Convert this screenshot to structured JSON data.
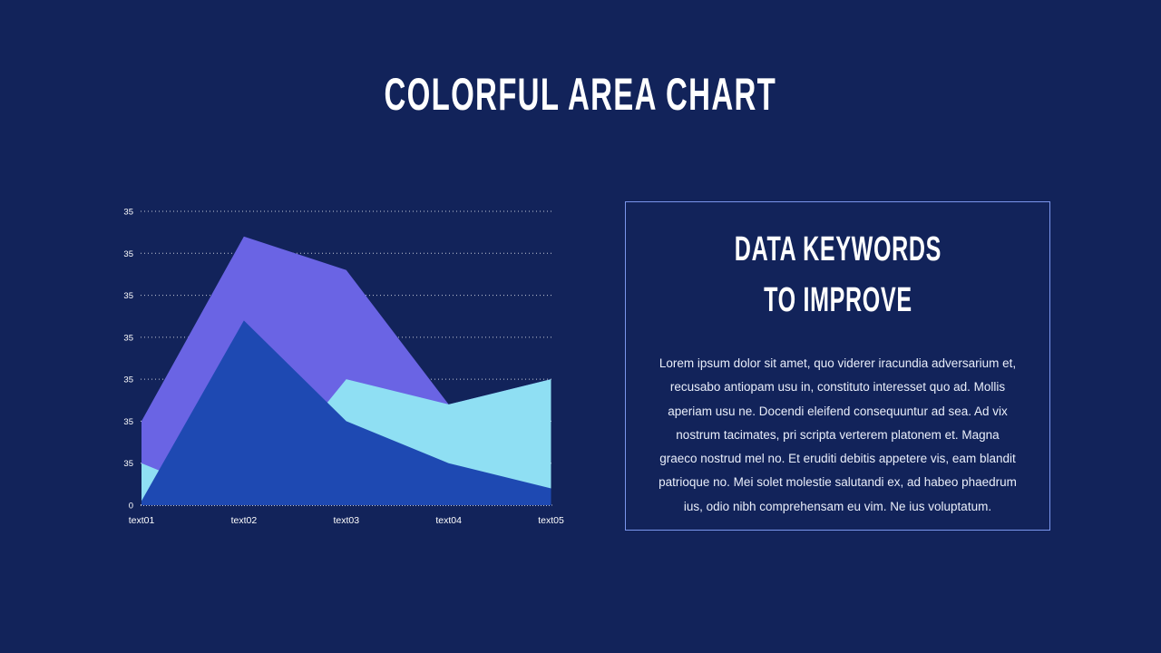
{
  "slide": {
    "title": "COLORFUL AREA CHART"
  },
  "panel": {
    "heading_lines": [
      "DATA KEYWORDS",
      "TO IMPROVE"
    ],
    "body_lines": [
      "Lorem ipsum dolor sit amet, quo viderer iracundia adversarium et,",
      "recusabo antiopam usu in, constituto interesset quo ad. Mollis",
      "aperiam usu ne. Docendi eleifend consequuntur ad sea. Ad vix",
      "nostrum tacimates, pri scripta verterem platonem et. Magna",
      "graeco nostrud mel no. Et eruditi debitis appetere vis, eam blandit",
      "patrioque no. Mei solet molestie salutandi ex, ad habeo phaedrum",
      "ius, odio nibh comprehensam eu vim. Ne ius voluptatum."
    ]
  },
  "chart_data": {
    "type": "area",
    "title": "",
    "xlabel": "",
    "ylabel": "",
    "categories": [
      "text01",
      "text02",
      "text03",
      "text04",
      "text05"
    ],
    "series": [
      {
        "name": "purple-area",
        "color": "#6A64E4",
        "values": [
          10,
          32,
          28,
          12,
          15
        ]
      },
      {
        "name": "cyan-area",
        "color": "#8FDFF3",
        "values": [
          5,
          0,
          15,
          12,
          15
        ]
      },
      {
        "name": "blue-area",
        "color": "#1E49B2",
        "values": [
          0.5,
          22,
          10,
          5,
          2
        ]
      }
    ],
    "ylim": [
      0,
      35
    ],
    "ytick_labels_top_to_bottom": [
      "35",
      "35",
      "35",
      "35",
      "35",
      "35",
      "35",
      "0"
    ],
    "grid": "dotted horizontal gridlines, bottom axis dotted",
    "legend": "none",
    "overlap_mode": "overlaid (not stacked), blue drawn in front, cyan middle, purple behind"
  },
  "colors": {
    "background": "#12235A",
    "panel_border": "#7B96EC",
    "title_text": "#FFFFFF",
    "body_text": "#E9EEFA",
    "axis_text": "#FFFFFF"
  }
}
